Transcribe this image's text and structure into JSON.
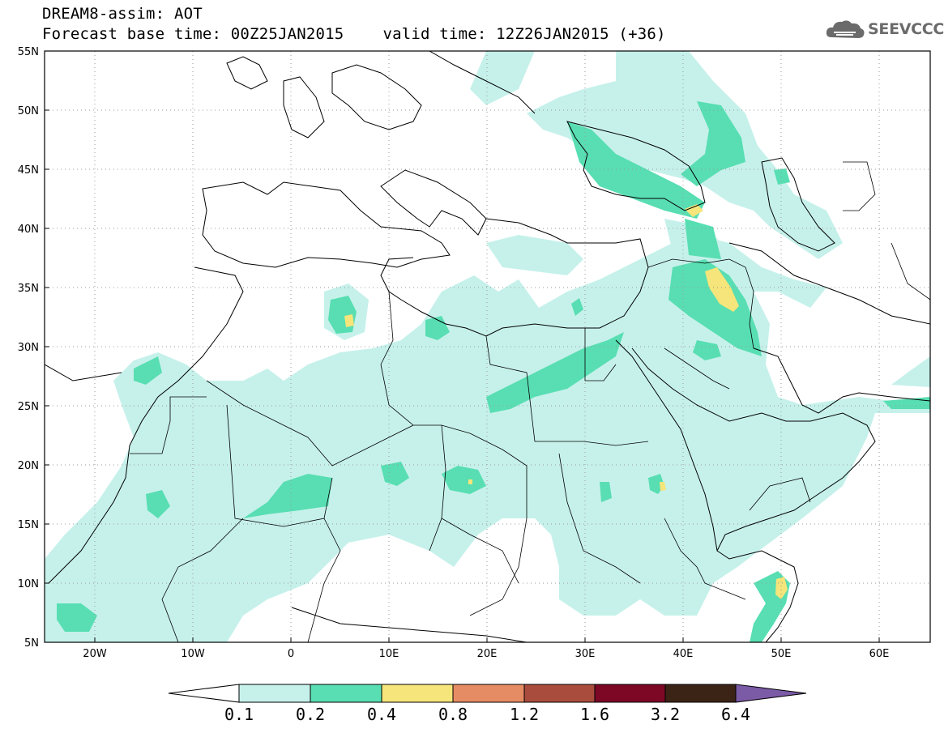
{
  "header": {
    "title": "DREAM8-assim: AOT",
    "base_time": "Forecast base time: 00Z25JAN2015",
    "valid_time": "valid time: 12Z26JAN2015 (+36)"
  },
  "logo": {
    "text": "SEEVCCC",
    "icon": "cloud-icon"
  },
  "map": {
    "lat_labels": [
      "55N",
      "50N",
      "45N",
      "40N",
      "35N",
      "30N",
      "25N",
      "20N",
      "15N",
      "10N",
      "5N"
    ],
    "lon_labels": [
      "20W",
      "10W",
      "0",
      "10E",
      "20E",
      "30E",
      "40E",
      "50E",
      "60E"
    ],
    "grid": "dotted",
    "extent": {
      "lon": [
        -25,
        65
      ],
      "lat": [
        5,
        55
      ]
    }
  },
  "colorbar": {
    "labels": [
      "0.1",
      "0.2",
      "0.4",
      "0.8",
      "1.2",
      "1.6",
      "3.2",
      "6.4"
    ],
    "colors": [
      "#ffffff",
      "#c6f1eb",
      "#58deb2",
      "#f5e57a",
      "#e68c64",
      "#a94c3e",
      "#7c0826",
      "#3b2316",
      "#7b5aa6"
    ]
  },
  "colors": {
    "level1": "#c6f1eb",
    "level2": "#58deb2",
    "level3": "#f5e57a"
  }
}
